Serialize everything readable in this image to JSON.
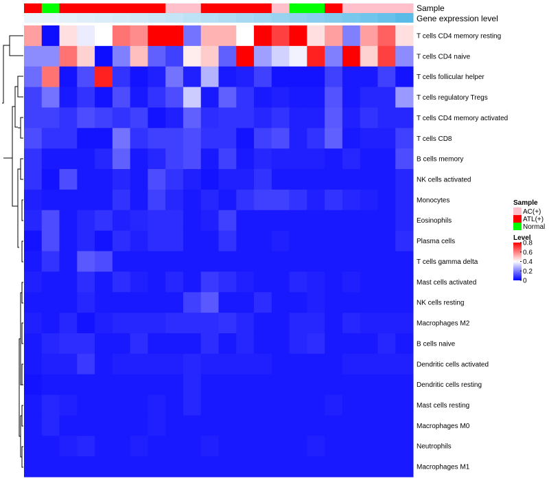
{
  "chart_data": {
    "type": "heatmap",
    "title": "",
    "annotation_labels": [
      "Sample",
      "Gene expression level"
    ],
    "rows": [
      "T cells CD4 memory resting",
      "T cells CD4 naive",
      "T cells follicular helper",
      "T cells regulatory  Tregs",
      "T cells CD4 memory activated",
      "T cells CD8",
      "B cells memory",
      "NK cells activated",
      "Monocytes",
      "Eosinophils",
      "Plasma cells",
      "T cells gamma delta",
      "Mast cells activated",
      "NK cells resting",
      "Macrophages M2",
      "B cells naive",
      "Dendritic cells activated",
      "Dendritic cells resting",
      "Mast cells resting",
      "Macrophages M0",
      "Neutrophils",
      "Macrophages M1"
    ],
    "sample_groups": [
      "ATL(+)",
      "Normal",
      "ATL(+)",
      "ATL(+)",
      "ATL(+)",
      "ATL(+)",
      "ATL(+)",
      "ATL(+)",
      "AC(+)",
      "AC(+)",
      "ATL(+)",
      "ATL(+)",
      "ATL(+)",
      "ATL(+)",
      "AC(+)",
      "Normal",
      "Normal",
      "ATL(+)",
      "AC(+)",
      "AC(+)",
      "AC(+)",
      "AC(+)"
    ],
    "gene_expression_level": [
      0.02,
      0.04,
      0.07,
      0.1,
      0.13,
      0.16,
      0.2,
      0.24,
      0.28,
      0.33,
      0.38,
      0.43,
      0.48,
      0.53,
      0.58,
      0.63,
      0.68,
      0.73,
      0.79,
      0.85,
      0.92,
      1.0
    ],
    "values": [
      [
        0.55,
        0.02,
        0.45,
        0.37,
        0.4,
        0.62,
        0.58,
        0.8,
        0.8,
        0.18,
        0.52,
        0.52,
        0.4,
        0.8,
        0.7,
        0.8,
        0.45,
        0.55,
        0.2,
        0.55,
        0.65,
        0.45
      ],
      [
        0.22,
        0.22,
        0.62,
        0.47,
        0.02,
        0.2,
        0.5,
        0.15,
        0.1,
        0.43,
        0.48,
        0.15,
        0.8,
        0.25,
        0.33,
        0.38,
        0.75,
        0.2,
        0.8,
        0.47,
        0.7,
        0.22
      ],
      [
        0.17,
        0.62,
        0.03,
        0.12,
        0.75,
        0.08,
        0.03,
        0.05,
        0.18,
        0.05,
        0.28,
        0.04,
        0.05,
        0.1,
        0.03,
        0.03,
        0.03,
        0.1,
        0.04,
        0.04,
        0.1,
        0.03
      ],
      [
        0.1,
        0.18,
        0.04,
        0.08,
        0.03,
        0.12,
        0.04,
        0.08,
        0.12,
        0.32,
        0.04,
        0.15,
        0.08,
        0.04,
        0.05,
        0.04,
        0.04,
        0.13,
        0.04,
        0.06,
        0.06,
        0.24
      ],
      [
        0.1,
        0.1,
        0.08,
        0.12,
        0.1,
        0.08,
        0.1,
        0.03,
        0.05,
        0.15,
        0.07,
        0.08,
        0.08,
        0.06,
        0.08,
        0.05,
        0.05,
        0.14,
        0.05,
        0.08,
        0.06,
        0.06
      ],
      [
        0.12,
        0.08,
        0.08,
        0.03,
        0.03,
        0.18,
        0.08,
        0.1,
        0.1,
        0.12,
        0.08,
        0.08,
        0.03,
        0.1,
        0.12,
        0.05,
        0.08,
        0.15,
        0.04,
        0.05,
        0.05,
        0.1
      ],
      [
        0.08,
        0.04,
        0.04,
        0.04,
        0.06,
        0.15,
        0.04,
        0.06,
        0.1,
        0.12,
        0.04,
        0.1,
        0.04,
        0.06,
        0.05,
        0.05,
        0.05,
        0.04,
        0.06,
        0.04,
        0.04,
        0.12
      ],
      [
        0.08,
        0.03,
        0.12,
        0.04,
        0.04,
        0.06,
        0.04,
        0.12,
        0.08,
        0.05,
        0.03,
        0.05,
        0.05,
        0.08,
        0.04,
        0.04,
        0.04,
        0.04,
        0.04,
        0.04,
        0.04,
        0.06
      ],
      [
        0.05,
        0.04,
        0.04,
        0.04,
        0.04,
        0.08,
        0.04,
        0.1,
        0.06,
        0.04,
        0.06,
        0.04,
        0.08,
        0.1,
        0.1,
        0.08,
        0.05,
        0.08,
        0.06,
        0.05,
        0.04,
        0.06
      ],
      [
        0.06,
        0.12,
        0.04,
        0.06,
        0.08,
        0.05,
        0.06,
        0.07,
        0.07,
        0.04,
        0.05,
        0.1,
        0.04,
        0.04,
        0.04,
        0.04,
        0.04,
        0.04,
        0.04,
        0.04,
        0.04,
        0.06
      ],
      [
        0.03,
        0.12,
        0.04,
        0.06,
        0.03,
        0.07,
        0.05,
        0.07,
        0.07,
        0.04,
        0.04,
        0.08,
        0.04,
        0.04,
        0.05,
        0.04,
        0.04,
        0.04,
        0.04,
        0.04,
        0.04,
        0.07
      ],
      [
        0.04,
        0.08,
        0.04,
        0.14,
        0.12,
        0.04,
        0.04,
        0.04,
        0.04,
        0.04,
        0.04,
        0.04,
        0.04,
        0.04,
        0.04,
        0.04,
        0.04,
        0.04,
        0.04,
        0.04,
        0.04,
        0.04
      ],
      [
        0.05,
        0.04,
        0.04,
        0.07,
        0.04,
        0.07,
        0.05,
        0.04,
        0.06,
        0.04,
        0.09,
        0.07,
        0.05,
        0.04,
        0.04,
        0.06,
        0.05,
        0.04,
        0.05,
        0.04,
        0.04,
        0.04
      ],
      [
        0.04,
        0.04,
        0.04,
        0.06,
        0.04,
        0.04,
        0.04,
        0.04,
        0.04,
        0.1,
        0.14,
        0.04,
        0.04,
        0.07,
        0.04,
        0.04,
        0.05,
        0.04,
        0.04,
        0.04,
        0.04,
        0.04
      ],
      [
        0.05,
        0.04,
        0.06,
        0.03,
        0.05,
        0.06,
        0.06,
        0.06,
        0.07,
        0.07,
        0.07,
        0.08,
        0.06,
        0.04,
        0.04,
        0.06,
        0.06,
        0.04,
        0.06,
        0.05,
        0.05,
        0.05
      ],
      [
        0.04,
        0.06,
        0.07,
        0.07,
        0.04,
        0.04,
        0.07,
        0.04,
        0.04,
        0.04,
        0.07,
        0.04,
        0.06,
        0.04,
        0.04,
        0.06,
        0.07,
        0.04,
        0.04,
        0.04,
        0.06,
        0.04
      ],
      [
        0.04,
        0.05,
        0.05,
        0.09,
        0.04,
        0.05,
        0.05,
        0.05,
        0.05,
        0.06,
        0.05,
        0.05,
        0.05,
        0.05,
        0.04,
        0.04,
        0.04,
        0.04,
        0.05,
        0.05,
        0.05,
        0.05
      ],
      [
        0.03,
        0.04,
        0.04,
        0.04,
        0.04,
        0.04,
        0.04,
        0.04,
        0.04,
        0.06,
        0.04,
        0.04,
        0.04,
        0.04,
        0.04,
        0.04,
        0.04,
        0.04,
        0.04,
        0.04,
        0.04,
        0.04
      ],
      [
        0.04,
        0.06,
        0.05,
        0.04,
        0.04,
        0.04,
        0.04,
        0.05,
        0.04,
        0.06,
        0.04,
        0.04,
        0.04,
        0.04,
        0.04,
        0.04,
        0.04,
        0.05,
        0.04,
        0.04,
        0.04,
        0.04
      ],
      [
        0.04,
        0.06,
        0.04,
        0.04,
        0.04,
        0.04,
        0.04,
        0.05,
        0.04,
        0.04,
        0.04,
        0.04,
        0.04,
        0.04,
        0.04,
        0.04,
        0.04,
        0.04,
        0.04,
        0.04,
        0.04,
        0.04
      ],
      [
        0.04,
        0.04,
        0.05,
        0.06,
        0.04,
        0.04,
        0.05,
        0.04,
        0.04,
        0.04,
        0.05,
        0.04,
        0.04,
        0.04,
        0.04,
        0.04,
        0.05,
        0.04,
        0.04,
        0.04,
        0.04,
        0.04
      ],
      [
        0.04,
        0.04,
        0.04,
        0.04,
        0.04,
        0.04,
        0.04,
        0.04,
        0.04,
        0.04,
        0.04,
        0.04,
        0.04,
        0.04,
        0.04,
        0.04,
        0.04,
        0.04,
        0.04,
        0.04,
        0.04,
        0.04
      ]
    ],
    "color_scale": {
      "min": 0,
      "max": 0.8,
      "low": "#0000ff",
      "mid": "#ffffff",
      "high": "#ff0000",
      "mid_value": 0.4
    },
    "legend_sample": {
      "title": "Sample",
      "items": [
        {
          "label": "AC(+)",
          "color": "#ffc0cb"
        },
        {
          "label": "ATL(+)",
          "color": "#ff0000"
        },
        {
          "label": "Normal",
          "color": "#00ff00"
        }
      ]
    },
    "legend_level": {
      "title": "Level",
      "ticks": [
        "0.8",
        "0.6",
        "0.4",
        "0.2",
        "0"
      ],
      "tick_values": [
        0.8,
        0.6,
        0.4,
        0.2,
        0
      ]
    },
    "dendrogram": "row clustering tree on left"
  }
}
